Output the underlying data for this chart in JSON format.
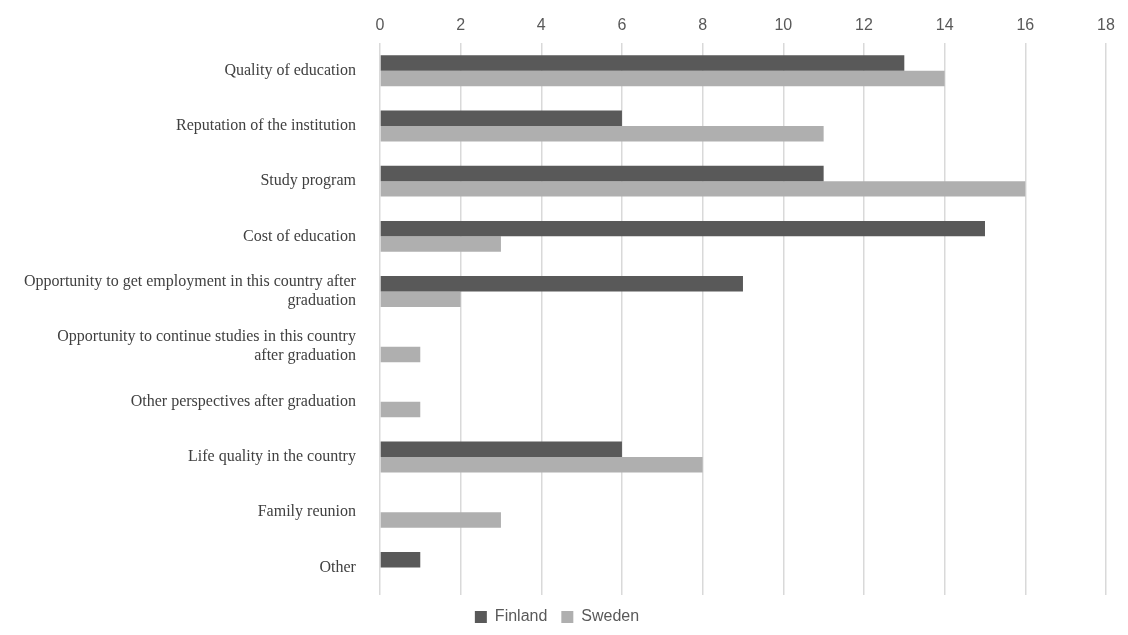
{
  "chart_data": {
    "type": "bar",
    "orientation": "horizontal",
    "categories": [
      "Quality of education",
      "Reputation of the institution",
      "Study program",
      "Cost of education",
      "Opportunity to get employment in this country after graduation",
      "Opportunity to continue studies in this country after graduation",
      "Other perspectives after graduation",
      "Life quality in the country",
      "Family reunion",
      "Other"
    ],
    "series": [
      {
        "name": "Finland",
        "color": "#595959",
        "values": [
          13,
          6,
          11,
          15,
          9,
          null,
          null,
          6,
          null,
          1
        ]
      },
      {
        "name": "Sweden",
        "color": "#afafaf",
        "values": [
          14,
          11,
          16,
          3,
          2,
          1,
          1,
          8,
          3,
          null
        ]
      }
    ],
    "xlim": [
      0,
      18
    ],
    "xticks": [
      0,
      2,
      4,
      6,
      8,
      10,
      12,
      14,
      16,
      18
    ],
    "grid": "x",
    "legend": "bottom"
  }
}
